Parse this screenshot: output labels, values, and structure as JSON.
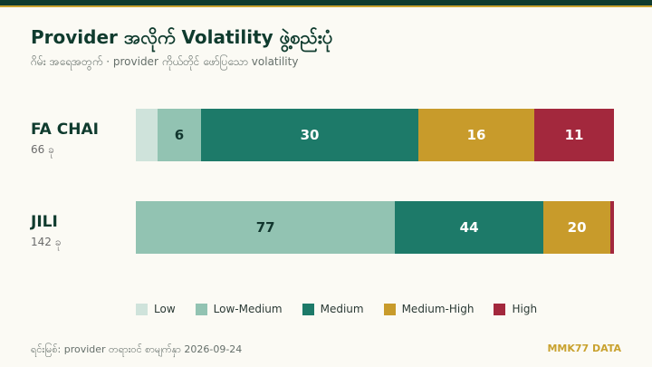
{
  "header": {
    "title": "Provider အလိုက် Volatility ဖွဲ့စည်းပုံ",
    "subtitle": "ဂိမ်း အရေအတွက် · provider ကိုယ်တိုင် ဖော်ပြသော volatility"
  },
  "footer": {
    "source": "ရင်းမြစ်: provider တရားဝင် စာမျက်နှာ 2026-09-24",
    "brand": "MMK77 DATA"
  },
  "colors": {
    "Low": "#cfe3db",
    "Low-Medium": "#92c3b2",
    "Medium": "#1d7a69",
    "Medium-High": "#c89b2b",
    "High": "#a3283d"
  },
  "chart_data": {
    "type": "bar",
    "orientation": "horizontal",
    "stacked": true,
    "categories": [
      "FA CHAI",
      "JILI"
    ],
    "category_counts": [
      "66 ခု",
      "142 ခု"
    ],
    "series": [
      {
        "name": "Low",
        "values": [
          3,
          0
        ]
      },
      {
        "name": "Low-Medium",
        "values": [
          6,
          77
        ]
      },
      {
        "name": "Medium",
        "values": [
          30,
          44
        ]
      },
      {
        "name": "Medium-High",
        "values": [
          16,
          20
        ]
      },
      {
        "name": "High",
        "values": [
          11,
          1
        ]
      }
    ],
    "legend": "bottom",
    "grid": false
  }
}
